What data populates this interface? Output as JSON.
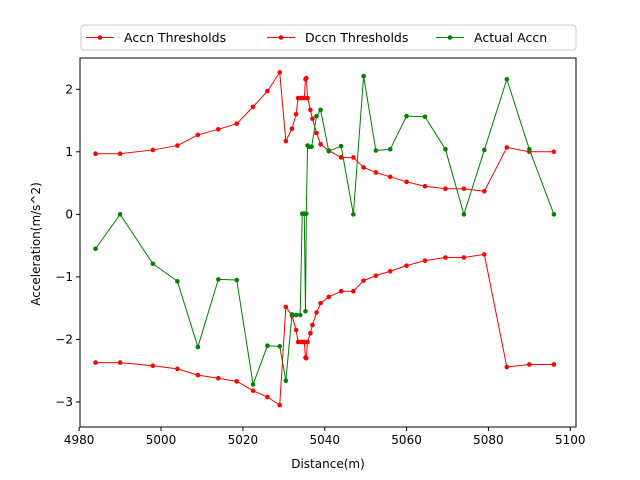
{
  "chart_data": {
    "type": "line",
    "title": "",
    "xlabel": "Distance(m)",
    "ylabel": "Acceleration(m/s^2)",
    "xlim": [
      4980.2,
      5101.4
    ],
    "ylim": [
      -3.4,
      2.5
    ],
    "xticks": [
      4980,
      5000,
      5020,
      5040,
      5060,
      5080,
      5100
    ],
    "yticks": [
      -3,
      -2,
      -1,
      0,
      1,
      2
    ],
    "xtick_labels": [
      "4980",
      "5000",
      "5020",
      "5040",
      "5060",
      "5080",
      "5100"
    ],
    "ytick_labels": [
      "−3",
      "−2",
      "−1",
      "0",
      "1",
      "2"
    ],
    "grid": false,
    "legend_position": "top-center",
    "series": [
      {
        "name": "Accn Thresholds",
        "color": "#ff0000",
        "segments": [
          {
            "x": [
              4984,
              4990,
              4998,
              5004,
              5009,
              5014,
              5018.5,
              5022.5,
              5026,
              5029,
              5030.5,
              5032,
              5033,
              5033.5,
              5034,
              5034.5,
              5035,
              5035.3,
              5035.5,
              5035.8,
              5036.5,
              5037,
              5038,
              5039,
              5041,
              5044,
              5047,
              5049.5,
              5052.5,
              5056,
              5060,
              5064.5,
              5069.5,
              5074,
              5079,
              5084.5,
              5090,
              5096
            ],
            "y": [
              0.97,
              0.97,
              1.03,
              1.1,
              1.27,
              1.36,
              1.45,
              1.72,
              1.97,
              2.27,
              1.17,
              1.37,
              1.6,
              1.86,
              1.86,
              1.86,
              1.86,
              2.16,
              2.18,
              1.86,
              1.67,
              1.53,
              1.3,
              1.12,
              1.02,
              0.91,
              0.91,
              0.75,
              0.67,
              0.6,
              0.52,
              0.45,
              0.41,
              0.41,
              0.37,
              1.07,
              1.0,
              1.0
            ]
          },
          {
            "x": [
              4984,
              4990,
              4998,
              5004,
              5009,
              5014,
              5018.5,
              5022.5,
              5026,
              5029,
              5030.5,
              5032,
              5033,
              5033.5,
              5034,
              5034.5,
              5035,
              5035.3,
              5035.5,
              5035.8,
              5036.5,
              5037,
              5038,
              5039,
              5041,
              5044,
              5047,
              5049.5,
              5052.5,
              5056,
              5060,
              5064.5,
              5069.5,
              5074,
              5079,
              5084.5,
              5090,
              5096
            ],
            "y": [
              -2.37,
              -2.37,
              -2.42,
              -2.47,
              -2.57,
              -2.62,
              -2.67,
              -2.82,
              -2.92,
              -3.05,
              -1.48,
              -1.62,
              -1.85,
              -2.04,
              -2.04,
              -2.04,
              -2.04,
              -2.29,
              -2.3,
              -2.04,
              -1.9,
              -1.77,
              -1.57,
              -1.42,
              -1.32,
              -1.23,
              -1.23,
              -1.06,
              -0.98,
              -0.91,
              -0.82,
              -0.74,
              -0.69,
              -0.69,
              -0.64,
              -2.44,
              -2.4,
              -2.4
            ]
          }
        ]
      },
      {
        "name": "Dccn Thresholds",
        "color": "#ff0000",
        "segments": []
      },
      {
        "name": "Actual Accn",
        "color": "#008000",
        "segments": [
          {
            "x": [
              4984,
              4990,
              4998,
              5004,
              5009,
              5014,
              5018.5,
              5022.5,
              5026,
              5029,
              5030.5,
              5032,
              5033,
              5034,
              5034.5,
              5035,
              5035.3,
              5035.5,
              5035.8,
              5036.2,
              5036.8,
              5038,
              5039,
              5041,
              5044,
              5047,
              5049.5,
              5052.5,
              5056,
              5060,
              5064.5,
              5069.5,
              5074,
              5079,
              5084.5,
              5090,
              5096
            ],
            "y": [
              -0.55,
              0.0,
              -0.79,
              -1.07,
              -2.12,
              -1.04,
              -1.05,
              -2.72,
              -2.1,
              -2.11,
              -2.66,
              -1.6,
              -1.61,
              -1.61,
              0.01,
              0.01,
              -1.55,
              0.01,
              1.1,
              1.08,
              1.08,
              1.57,
              1.67,
              1.01,
              1.09,
              0.0,
              2.21,
              1.02,
              1.04,
              1.57,
              1.56,
              1.04,
              0.0,
              1.03,
              2.16,
              1.04,
              0.0
            ]
          }
        ]
      }
    ]
  }
}
